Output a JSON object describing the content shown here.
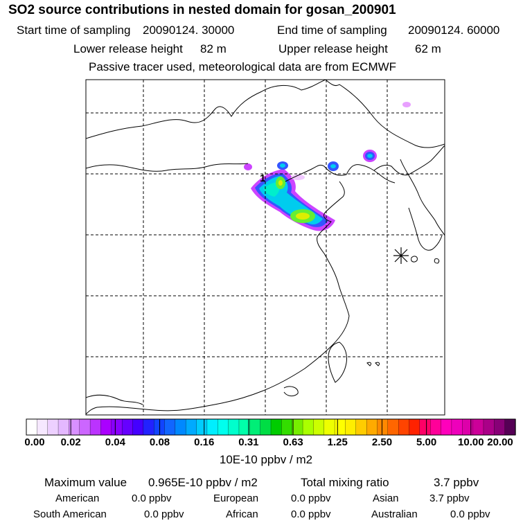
{
  "title": "SO2 source contributions in nested domain for gosan_200901",
  "sampling": {
    "start_label": "Start time of sampling",
    "start_value": "20090124. 30000",
    "end_label": "End time of sampling",
    "end_value": "20090124. 60000"
  },
  "release": {
    "lower_label": "Lower release height",
    "lower_value": "82 m",
    "upper_label": "Upper release height",
    "upper_value": "62 m"
  },
  "note": "Passive tracer used, meteorological data are from ECMWF",
  "map": {
    "source_marker": "1",
    "receptor_icon": "asterisk-icon",
    "plume_colors": [
      "#cc44ff",
      "#3355ff",
      "#00ccee",
      "#00eecc",
      "#66ee33",
      "#ddee00"
    ]
  },
  "colorbar": {
    "tick_labels": [
      "0.00",
      "0.02",
      "0.04",
      "0.08",
      "0.16",
      "0.31",
      "0.63",
      "1.25",
      "2.50",
      "5.00",
      "10.00",
      "20.00"
    ],
    "colors": [
      "#ffffff",
      "#f6e8ff",
      "#edd0ff",
      "#e4b8ff",
      "#d890ff",
      "#cc66ff",
      "#bb33ff",
      "#aa00ff",
      "#8800ff",
      "#6600ff",
      "#4400ff",
      "#2222ff",
      "#1144ff",
      "#1166ff",
      "#0088ff",
      "#00aaff",
      "#00ccff",
      "#00eeff",
      "#00ffee",
      "#00ffcc",
      "#00ffaa",
      "#00ee77",
      "#00dd44",
      "#00cc00",
      "#33dd00",
      "#77ee00",
      "#aaff00",
      "#ccff00",
      "#eeff00",
      "#ffff00",
      "#ffee00",
      "#ffcc00",
      "#ffaa00",
      "#ff8800",
      "#ff6600",
      "#ff4400",
      "#ff2200",
      "#ff0066",
      "#ff0099",
      "#ff00bb",
      "#ee00bb",
      "#dd00aa",
      "#cc0099",
      "#aa0088",
      "#880077",
      "#550055"
    ],
    "unit": "10E-10 ppbv / m2"
  },
  "stats": {
    "max_label": "Maximum value",
    "max_value": "0.965E-10 ppbv / m2",
    "total_label": "Total mixing ratio",
    "total_value": "3.7 ppbv",
    "regions": [
      {
        "name": "American",
        "value": "0.0 ppbv"
      },
      {
        "name": "European",
        "value": "0.0 ppbv"
      },
      {
        "name": "Asian",
        "value": "3.7 ppbv"
      },
      {
        "name": "South American",
        "value": "0.0 ppbv"
      },
      {
        "name": "African",
        "value": "0.0 ppbv"
      },
      {
        "name": "Australian",
        "value": "0.0 ppbv"
      }
    ]
  }
}
